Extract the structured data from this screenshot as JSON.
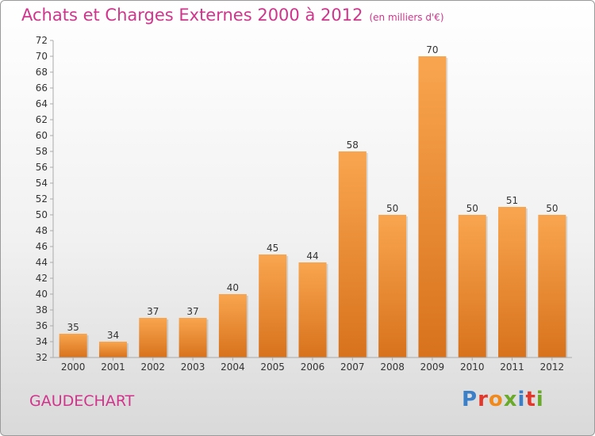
{
  "header": {
    "title": "Achats et Charges Externes 2000 à 2012",
    "unit": "(en milliers d'€)"
  },
  "footer": {
    "commune": "GAUDECHART",
    "brand": "Proxiti"
  },
  "colors": {
    "title": "#d0358c",
    "bar_light": "#f9a54f",
    "bar_dark": "#d8721c",
    "brand_letters": [
      "#3a7fc8",
      "#e2382c",
      "#f08a1c",
      "#6aaa2a",
      "#3a7fc8",
      "#e2382c",
      "#6aaa2a"
    ]
  },
  "chart_data": {
    "type": "bar",
    "categories": [
      "2000",
      "2001",
      "2002",
      "2003",
      "2004",
      "2005",
      "2006",
      "2007",
      "2008",
      "2009",
      "2010",
      "2011",
      "2012"
    ],
    "values": [
      35,
      34,
      37,
      37,
      40,
      45,
      44,
      58,
      50,
      70,
      50,
      51,
      50
    ],
    "title": "Achats et Charges Externes 2000 à 2012",
    "subtitle": "(en milliers d'€)",
    "xlabel": "",
    "ylabel": "",
    "ylim": [
      32,
      72
    ],
    "ytick_step": 2,
    "grid": false,
    "data_labels": true
  }
}
